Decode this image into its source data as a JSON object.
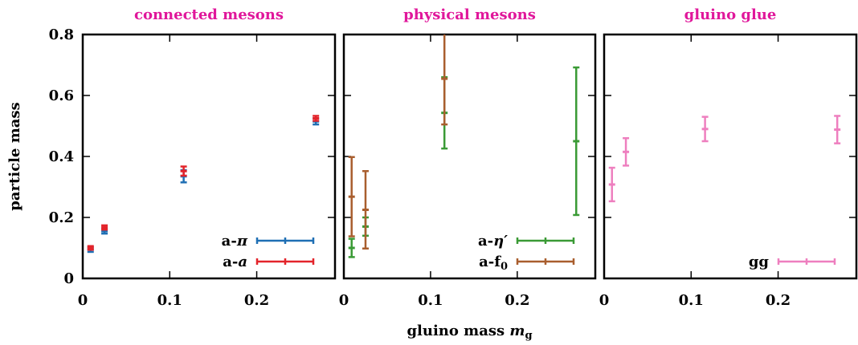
{
  "chart_data": {
    "type": "scatter",
    "xlabel": "gluino mass ",
    "xlabel_symbol": "m",
    "xlabel_sub": "g",
    "ylabel": "particle mass",
    "xlim": [
      0,
      0.29
    ],
    "ylim": [
      0,
      0.8
    ],
    "xticks": [
      "0",
      "0.1",
      "0.2"
    ],
    "yticks": [
      "0",
      "0.2",
      "0.4",
      "0.6",
      "0.8"
    ],
    "panels": [
      {
        "title": "connected mesons",
        "legend_position": "bottom-right",
        "series": [
          {
            "name": "a-",
            "name_symbol": "π",
            "color": "#1f6fb4",
            "points": [
              {
                "x": 0.009,
                "y": 0.095,
                "err": 0.008
              },
              {
                "x": 0.025,
                "y": 0.155,
                "err": 0.008
              },
              {
                "x": 0.116,
                "y": 0.335,
                "err": 0.02
              },
              {
                "x": 0.268,
                "y": 0.515,
                "err": 0.01
              }
            ]
          },
          {
            "name": "a-",
            "name_symbol": "a",
            "color": "#e3242b",
            "points": [
              {
                "x": 0.009,
                "y": 0.1,
                "err": 0.006
              },
              {
                "x": 0.025,
                "y": 0.167,
                "err": 0.007
              },
              {
                "x": 0.116,
                "y": 0.352,
                "err": 0.015
              },
              {
                "x": 0.268,
                "y": 0.525,
                "err": 0.008
              }
            ]
          }
        ]
      },
      {
        "title": "physical mesons",
        "legend_position": "bottom-right",
        "series": [
          {
            "name": "a-",
            "name_symbol": "η′",
            "color": "#3a9a35",
            "points": [
              {
                "x": 0.009,
                "y": 0.1,
                "err": 0.03
              },
              {
                "x": 0.025,
                "y": 0.17,
                "err": 0.03
              },
              {
                "x": 0.116,
                "y": 0.543,
                "err": 0.117
              },
              {
                "x": 0.268,
                "y": 0.45,
                "err": 0.242
              }
            ]
          },
          {
            "name": "a-f",
            "name_sub": "0",
            "color": "#a95e2e",
            "points": [
              {
                "x": 0.009,
                "y": 0.268,
                "err": 0.13
              },
              {
                "x": 0.025,
                "y": 0.225,
                "err": 0.127
              },
              {
                "x": 0.116,
                "y": 0.655,
                "err": 0.15
              }
            ]
          }
        ]
      },
      {
        "title": "gluino glue",
        "legend_position": "bottom-right",
        "series": [
          {
            "name": "gg",
            "color": "#ee7fbf",
            "points": [
              {
                "x": 0.009,
                "y": 0.308,
                "err": 0.055
              },
              {
                "x": 0.025,
                "y": 0.415,
                "err": 0.045
              },
              {
                "x": 0.116,
                "y": 0.49,
                "err": 0.04
              },
              {
                "x": 0.268,
                "y": 0.488,
                "err": 0.045
              }
            ]
          }
        ]
      }
    ]
  }
}
